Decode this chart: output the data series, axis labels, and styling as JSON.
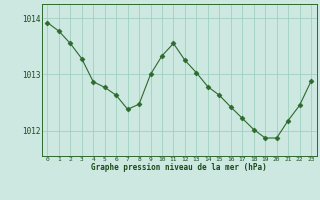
{
  "x": [
    0,
    1,
    2,
    3,
    4,
    5,
    6,
    7,
    8,
    9,
    10,
    11,
    12,
    13,
    14,
    15,
    16,
    17,
    18,
    19,
    20,
    21,
    22,
    23
  ],
  "y": [
    1013.92,
    1013.77,
    1013.55,
    1013.28,
    1012.87,
    1012.77,
    1012.63,
    1012.38,
    1012.47,
    1013.0,
    1013.33,
    1013.55,
    1013.25,
    1013.03,
    1012.78,
    1012.63,
    1012.42,
    1012.22,
    1012.02,
    1011.87,
    1011.87,
    1012.18,
    1012.45,
    1012.88
  ],
  "line_color": "#2d6a2d",
  "marker": "D",
  "marker_size": 2.5,
  "bg_color": "#cce8e0",
  "grid_color": "#99ccbb",
  "axes_color": "#2d6a2d",
  "text_color": "#1a4a1a",
  "title": "Graphe pression niveau de la mer (hPa)",
  "yticks": [
    1012,
    1013,
    1014
  ],
  "ylim": [
    1011.55,
    1014.25
  ],
  "xlim": [
    -0.5,
    23.5
  ]
}
